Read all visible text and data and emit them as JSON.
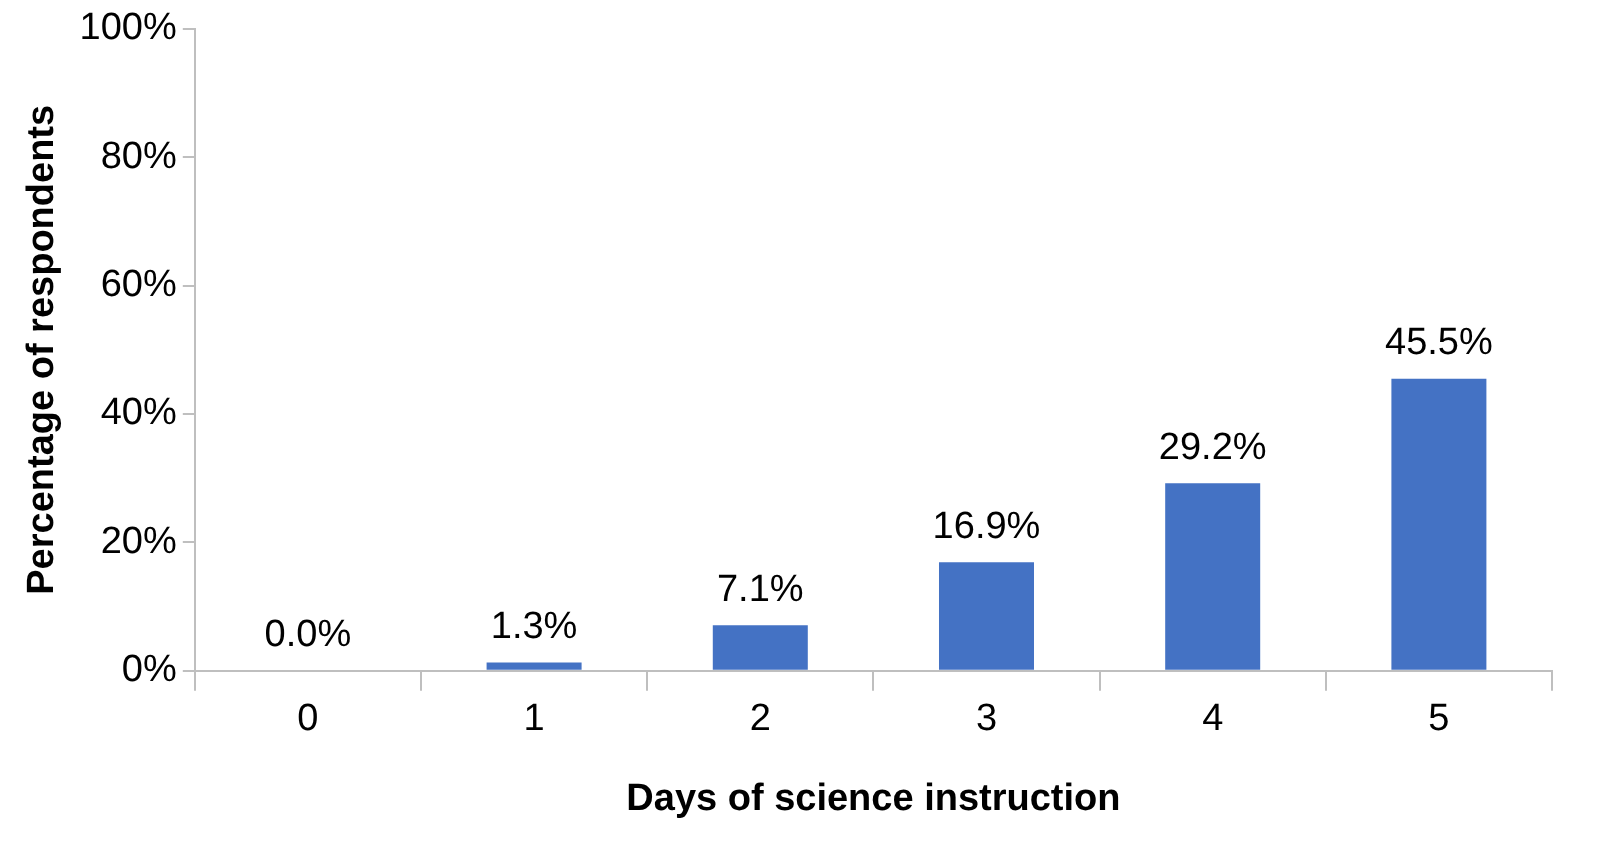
{
  "chart_data": {
    "type": "bar",
    "xlabel": "Days of science instruction",
    "ylabel": "Percentage of respondents",
    "categories": [
      "0",
      "1",
      "2",
      "3",
      "4",
      "5"
    ],
    "values": [
      0.0,
      1.3,
      7.1,
      16.9,
      29.2,
      45.5
    ],
    "value_labels": [
      "0.0%",
      "1.3%",
      "7.1%",
      "16.9%",
      "29.2%",
      "45.5%"
    ],
    "color": "#4472c4",
    "ylim": [
      0,
      100
    ],
    "yticks": [
      {
        "value": 0,
        "label": "0%"
      },
      {
        "value": 20,
        "label": "20%"
      },
      {
        "value": 40,
        "label": "40%"
      },
      {
        "value": 60,
        "label": "60%"
      },
      {
        "value": 80,
        "label": "80%"
      },
      {
        "value": 100,
        "label": "100%"
      }
    ],
    "grid": false,
    "legend": false
  }
}
